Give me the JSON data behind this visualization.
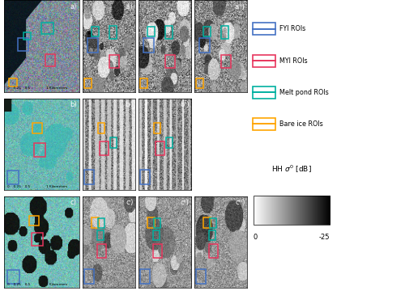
{
  "fig_width": 5.0,
  "fig_height": 3.6,
  "dpi": 100,
  "background_color": "#ffffff",
  "legend_items": [
    {
      "label": "FYI ROIs",
      "color": "#4472c4"
    },
    {
      "label": "MYI ROIs",
      "color": "#e8365d"
    },
    {
      "label": "Melt pond ROIs",
      "color": "#00b0a0"
    },
    {
      "label": "Bare ice ROIs",
      "color": "#ffa500"
    }
  ],
  "colorbar_label": "HH σ° [dB]",
  "colorbar_min": "0",
  "colorbar_max": "-25",
  "fyi_color": "#4472c4",
  "myi_color": "#e8365d",
  "mp_color": "#00b0a0",
  "bi_color": "#ffa500"
}
